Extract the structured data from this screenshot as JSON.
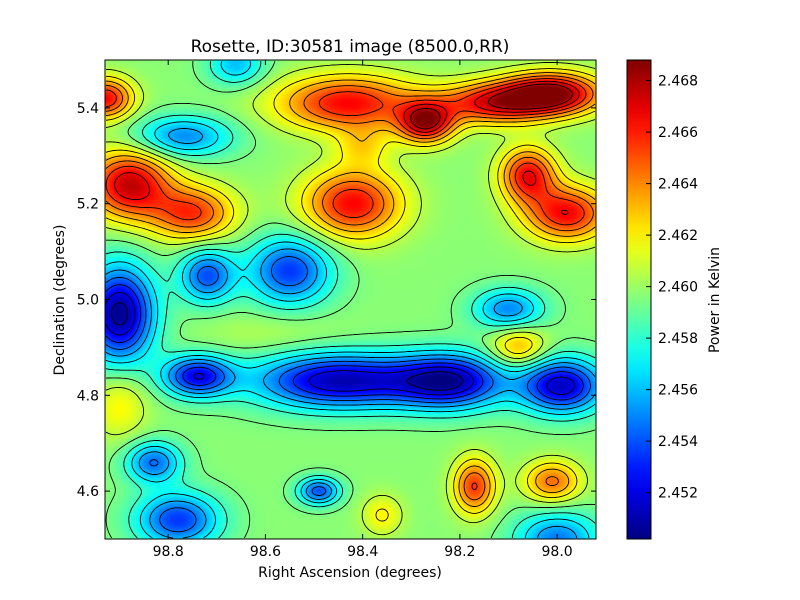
{
  "chart_data": {
    "type": "heatmap",
    "title": "Rosette, ID:30581 image (8500.0,RR)",
    "xlabel": "Right Ascension (degrees)",
    "ylabel": "Declination (degrees)",
    "xlim": [
      98.93,
      97.92
    ],
    "ylim": [
      4.5,
      5.5
    ],
    "x_ticks": [
      98.8,
      98.6,
      98.4,
      98.2,
      98.0
    ],
    "x_tick_labels": [
      "98.8",
      "98.6",
      "98.4",
      "98.2",
      "98.0"
    ],
    "y_ticks": [
      4.6,
      4.8,
      5.0,
      5.2,
      5.4
    ],
    "y_tick_labels": [
      "4.6",
      "4.8",
      "5.0",
      "5.2",
      "5.4"
    ],
    "colorbar": {
      "label": "Power in Kelvin",
      "vmin": 2.4502,
      "vmax": 2.4688,
      "ticks": [
        2.452,
        2.454,
        2.456,
        2.458,
        2.46,
        2.462,
        2.464,
        2.466,
        2.468
      ],
      "tick_labels": [
        "2.452",
        "2.454",
        "2.456",
        "2.458",
        "2.460",
        "2.462",
        "2.464",
        "2.466",
        "2.468"
      ],
      "colormap": "jet"
    },
    "baseline": 2.4597,
    "features": [
      {
        "ra": 98.9,
        "dec": 4.97,
        "value": 2.4505,
        "sx": 0.05,
        "sy": 0.07
      },
      {
        "ra": 98.45,
        "dec": 4.83,
        "value": 2.4512,
        "sx": 0.12,
        "sy": 0.04
      },
      {
        "ra": 98.22,
        "dec": 4.83,
        "value": 2.4515,
        "sx": 0.08,
        "sy": 0.04
      },
      {
        "ra": 97.99,
        "dec": 4.82,
        "value": 2.4515,
        "sx": 0.06,
        "sy": 0.04
      },
      {
        "ra": 98.74,
        "dec": 4.84,
        "value": 2.4525,
        "sx": 0.05,
        "sy": 0.03
      },
      {
        "ra": 98.55,
        "dec": 5.06,
        "value": 2.4535,
        "sx": 0.06,
        "sy": 0.05
      },
      {
        "ra": 98.72,
        "dec": 5.05,
        "value": 2.454,
        "sx": 0.04,
        "sy": 0.04
      },
      {
        "ra": 98.1,
        "dec": 4.98,
        "value": 2.455,
        "sx": 0.05,
        "sy": 0.03
      },
      {
        "ra": 98.78,
        "dec": 4.54,
        "value": 2.4535,
        "sx": 0.06,
        "sy": 0.04
      },
      {
        "ra": 98.83,
        "dec": 4.66,
        "value": 2.4545,
        "sx": 0.04,
        "sy": 0.03
      },
      {
        "ra": 98.49,
        "dec": 4.6,
        "value": 2.454,
        "sx": 0.03,
        "sy": 0.02
      },
      {
        "ra": 98.0,
        "dec": 4.5,
        "value": 2.4548,
        "sx": 0.06,
        "sy": 0.04
      },
      {
        "ra": 98.77,
        "dec": 5.34,
        "value": 2.455,
        "sx": 0.07,
        "sy": 0.03
      },
      {
        "ra": 98.66,
        "dec": 5.49,
        "value": 2.456,
        "sx": 0.04,
        "sy": 0.03
      },
      {
        "ra": 98.93,
        "dec": 5.42,
        "value": 2.4665,
        "sx": 0.04,
        "sy": 0.03
      },
      {
        "ra": 98.43,
        "dec": 5.41,
        "value": 2.4665,
        "sx": 0.1,
        "sy": 0.04
      },
      {
        "ra": 98.27,
        "dec": 5.37,
        "value": 2.4675,
        "sx": 0.04,
        "sy": 0.03
      },
      {
        "ra": 98.13,
        "dec": 5.41,
        "value": 2.4665,
        "sx": 0.08,
        "sy": 0.03
      },
      {
        "ra": 98.01,
        "dec": 5.43,
        "value": 2.4685,
        "sx": 0.07,
        "sy": 0.03
      },
      {
        "ra": 98.88,
        "dec": 5.24,
        "value": 2.4675,
        "sx": 0.06,
        "sy": 0.05
      },
      {
        "ra": 98.75,
        "dec": 5.18,
        "value": 2.4655,
        "sx": 0.06,
        "sy": 0.04
      },
      {
        "ra": 98.42,
        "dec": 5.2,
        "value": 2.4665,
        "sx": 0.07,
        "sy": 0.05
      },
      {
        "ra": 98.06,
        "dec": 5.26,
        "value": 2.4665,
        "sx": 0.04,
        "sy": 0.04
      },
      {
        "ra": 97.98,
        "dec": 5.18,
        "value": 2.4665,
        "sx": 0.06,
        "sy": 0.04
      },
      {
        "ra": 98.4,
        "dec": 5.32,
        "value": 2.462,
        "sx": 0.04,
        "sy": 0.03
      },
      {
        "ra": 98.08,
        "dec": 4.9,
        "value": 2.4635,
        "sx": 0.04,
        "sy": 0.03
      },
      {
        "ra": 98.59,
        "dec": 4.93,
        "value": 2.4605,
        "sx": 0.1,
        "sy": 0.03
      },
      {
        "ra": 98.17,
        "dec": 4.61,
        "value": 2.4655,
        "sx": 0.03,
        "sy": 0.04
      },
      {
        "ra": 98.01,
        "dec": 4.62,
        "value": 2.4645,
        "sx": 0.04,
        "sy": 0.03
      },
      {
        "ra": 98.9,
        "dec": 4.78,
        "value": 2.462,
        "sx": 0.04,
        "sy": 0.05
      },
      {
        "ra": 98.36,
        "dec": 4.55,
        "value": 2.462,
        "sx": 0.03,
        "sy": 0.03
      }
    ]
  }
}
